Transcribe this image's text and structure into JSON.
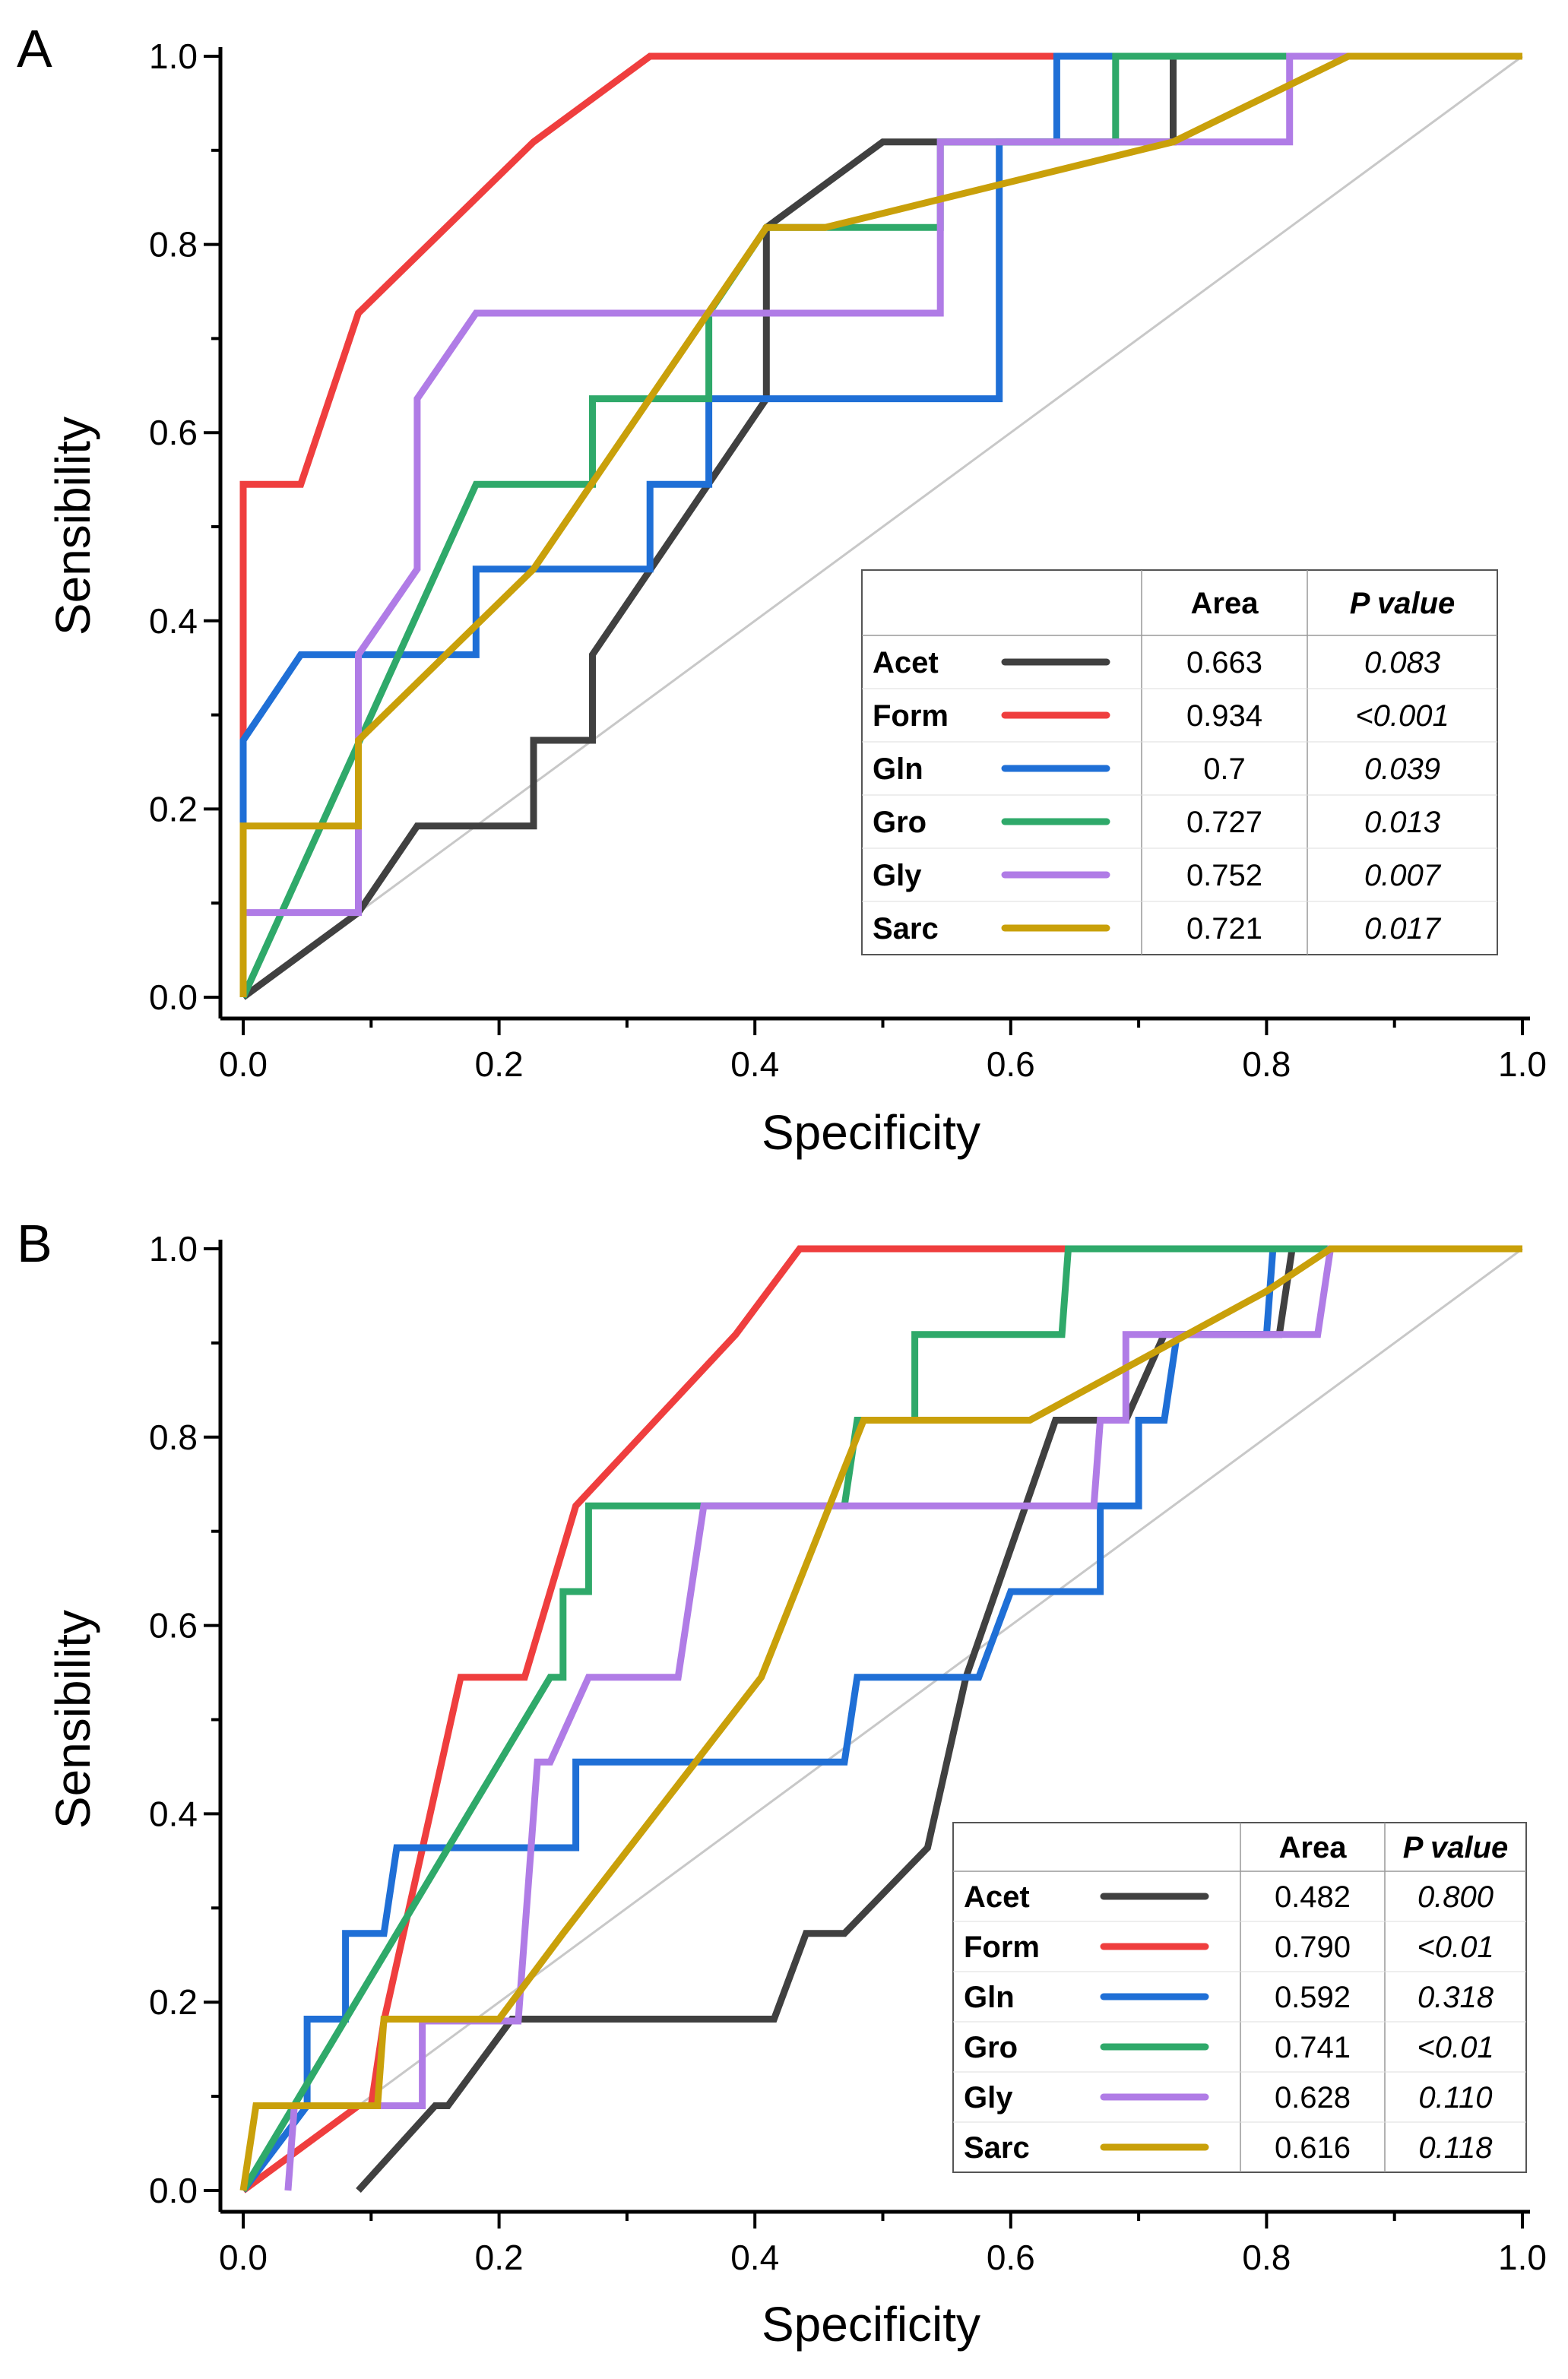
{
  "chart_data": [
    {
      "type": "line",
      "panel": "A",
      "xlabel": "Specificity",
      "ylabel": "Sensibility",
      "xlim": [
        0,
        1
      ],
      "ylim": [
        0,
        1
      ],
      "x_ticks": [
        "0.0",
        "0.2",
        "0.4",
        "0.6",
        "0.8",
        "1.0"
      ],
      "y_ticks": [
        "0.0",
        "0.2",
        "0.4",
        "0.6",
        "0.8",
        "1.0"
      ],
      "legend": {
        "placement": "lower-right",
        "header": [
          "Area",
          "P value"
        ]
      },
      "reference_line": {
        "color": "#c8c8c8",
        "points": [
          [
            0,
            0
          ],
          [
            1,
            1
          ]
        ]
      },
      "series": [
        {
          "name": "Acet",
          "area": "0.663",
          "p": "0.083",
          "color": "#404040",
          "points": [
            [
              0,
              0
            ],
            [
              0.09,
              0.09
            ],
            [
              0.136,
              0.182
            ],
            [
              0.227,
              0.182
            ],
            [
              0.227,
              0.273
            ],
            [
              0.273,
              0.273
            ],
            [
              0.273,
              0.364
            ],
            [
              0.409,
              0.636
            ],
            [
              0.409,
              0.818
            ],
            [
              0.5,
              0.909
            ],
            [
              0.727,
              0.909
            ],
            [
              0.727,
              1
            ],
            [
              1,
              1
            ]
          ]
        },
        {
          "name": "Form",
          "area": "0.934",
          "p": "<0.001",
          "color": "#ef3e3e",
          "points": [
            [
              0,
              0
            ],
            [
              0,
              0.545
            ],
            [
              0.045,
              0.545
            ],
            [
              0.09,
              0.727
            ],
            [
              0.227,
              0.909
            ],
            [
              0.318,
              1
            ],
            [
              1,
              1
            ]
          ]
        },
        {
          "name": "Gln",
          "area": "0.7",
          "p": "0.039",
          "color": "#1f6fd6",
          "points": [
            [
              0,
              0
            ],
            [
              0,
              0.273
            ],
            [
              0.045,
              0.364
            ],
            [
              0.182,
              0.364
            ],
            [
              0.182,
              0.455
            ],
            [
              0.318,
              0.455
            ],
            [
              0.318,
              0.545
            ],
            [
              0.364,
              0.545
            ],
            [
              0.364,
              0.636
            ],
            [
              0.591,
              0.636
            ],
            [
              0.591,
              0.909
            ],
            [
              0.636,
              0.909
            ],
            [
              0.636,
              1
            ],
            [
              1,
              1
            ]
          ]
        },
        {
          "name": "Gro",
          "area": "0.727",
          "p": "0.013",
          "color": "#2fa96a",
          "points": [
            [
              0,
              0
            ],
            [
              0.182,
              0.545
            ],
            [
              0.273,
              0.545
            ],
            [
              0.273,
              0.636
            ],
            [
              0.364,
              0.636
            ],
            [
              0.364,
              0.727
            ],
            [
              0.409,
              0.818
            ],
            [
              0.545,
              0.818
            ],
            [
              0.545,
              0.909
            ],
            [
              0.682,
              0.909
            ],
            [
              0.682,
              1
            ],
            [
              1,
              1
            ]
          ]
        },
        {
          "name": "Gly",
          "area": "0.752",
          "p": "0.007",
          "color": "#b07ce6",
          "points": [
            [
              0,
              0
            ],
            [
              0,
              0.09
            ],
            [
              0.09,
              0.09
            ],
            [
              0.09,
              0.364
            ],
            [
              0.136,
              0.455
            ],
            [
              0.136,
              0.636
            ],
            [
              0.182,
              0.727
            ],
            [
              0.545,
              0.727
            ],
            [
              0.545,
              0.909
            ],
            [
              0.818,
              0.909
            ],
            [
              0.818,
              1
            ],
            [
              1,
              1
            ]
          ]
        },
        {
          "name": "Sarc",
          "area": "0.721",
          "p": "0.017",
          "color": "#c9a00a",
          "points": [
            [
              0,
              0
            ],
            [
              0,
              0.182
            ],
            [
              0.09,
              0.182
            ],
            [
              0.09,
              0.273
            ],
            [
              0.227,
              0.455
            ],
            [
              0.409,
              0.818
            ],
            [
              0.455,
              0.818
            ],
            [
              0.727,
              0.909
            ],
            [
              0.864,
              1
            ],
            [
              1,
              1
            ]
          ]
        }
      ]
    },
    {
      "type": "line",
      "panel": "B",
      "xlabel": "Specificity",
      "ylabel": "Sensibility",
      "xlim": [
        0,
        1
      ],
      "ylim": [
        0,
        1
      ],
      "x_ticks": [
        "0.0",
        "0.2",
        "0.4",
        "0.6",
        "0.8",
        "1.0"
      ],
      "y_ticks": [
        "0.0",
        "0.2",
        "0.4",
        "0.6",
        "0.8",
        "1.0"
      ],
      "legend": {
        "placement": "lower-right",
        "header": [
          "Area",
          "P value"
        ]
      },
      "reference_line": {
        "color": "#c8c8c8",
        "points": [
          [
            0,
            0
          ],
          [
            1,
            1
          ]
        ]
      },
      "series": [
        {
          "name": "Acet",
          "area": "0.482",
          "p": "0.800",
          "color": "#404040",
          "points": [
            [
              0.09,
              0
            ],
            [
              0.15,
              0.09
            ],
            [
              0.16,
              0.09
            ],
            [
              0.21,
              0.182
            ],
            [
              0.415,
              0.182
            ],
            [
              0.44,
              0.273
            ],
            [
              0.47,
              0.273
            ],
            [
              0.535,
              0.364
            ],
            [
              0.565,
              0.545
            ],
            [
              0.635,
              0.818
            ],
            [
              0.69,
              0.818
            ],
            [
              0.72,
              0.909
            ],
            [
              0.81,
              0.909
            ],
            [
              0.82,
              1
            ],
            [
              1,
              1
            ]
          ]
        },
        {
          "name": "Form",
          "area": "0.790",
          "p": "<0.01",
          "color": "#ef3e3e",
          "points": [
            [
              0,
              0
            ],
            [
              0.09,
              0.09
            ],
            [
              0.1,
              0.09
            ],
            [
              0.11,
              0.18
            ],
            [
              0.17,
              0.545
            ],
            [
              0.22,
              0.545
            ],
            [
              0.26,
              0.727
            ],
            [
              0.385,
              0.909
            ],
            [
              0.435,
              1
            ],
            [
              1,
              1
            ]
          ]
        },
        {
          "name": "Gln",
          "area": "0.592",
          "p": "0.318",
          "color": "#1f6fd6",
          "points": [
            [
              0,
              0
            ],
            [
              0.05,
              0.09
            ],
            [
              0.05,
              0.182
            ],
            [
              0.08,
              0.182
            ],
            [
              0.08,
              0.273
            ],
            [
              0.11,
              0.273
            ],
            [
              0.12,
              0.364
            ],
            [
              0.26,
              0.364
            ],
            [
              0.26,
              0.455
            ],
            [
              0.47,
              0.455
            ],
            [
              0.48,
              0.545
            ],
            [
              0.575,
              0.545
            ],
            [
              0.6,
              0.636
            ],
            [
              0.67,
              0.636
            ],
            [
              0.67,
              0.727
            ],
            [
              0.7,
              0.727
            ],
            [
              0.7,
              0.818
            ],
            [
              0.72,
              0.818
            ],
            [
              0.73,
              0.909
            ],
            [
              0.8,
              0.909
            ],
            [
              0.805,
              1
            ],
            [
              1,
              1
            ]
          ]
        },
        {
          "name": "Gro",
          "area": "0.741",
          "p": "<0.01",
          "color": "#2fa96a",
          "points": [
            [
              0,
              0
            ],
            [
              0.24,
              0.545
            ],
            [
              0.25,
              0.545
            ],
            [
              0.25,
              0.636
            ],
            [
              0.27,
              0.636
            ],
            [
              0.27,
              0.727
            ],
            [
              0.365,
              0.727
            ],
            [
              0.47,
              0.727
            ],
            [
              0.48,
              0.818
            ],
            [
              0.525,
              0.818
            ],
            [
              0.525,
              0.909
            ],
            [
              0.64,
              0.909
            ],
            [
              0.645,
              1
            ],
            [
              1,
              1
            ]
          ]
        },
        {
          "name": "Gly",
          "area": "0.628",
          "p": "0.110",
          "color": "#b07ce6",
          "points": [
            [
              0.035,
              0
            ],
            [
              0.04,
              0.09
            ],
            [
              0.14,
              0.09
            ],
            [
              0.14,
              0.18
            ],
            [
              0.215,
              0.18
            ],
            [
              0.23,
              0.455
            ],
            [
              0.24,
              0.455
            ],
            [
              0.27,
              0.545
            ],
            [
              0.34,
              0.545
            ],
            [
              0.36,
              0.727
            ],
            [
              0.665,
              0.727
            ],
            [
              0.67,
              0.818
            ],
            [
              0.69,
              0.818
            ],
            [
              0.69,
              0.909
            ],
            [
              0.84,
              0.909
            ],
            [
              0.85,
              1
            ],
            [
              1,
              1
            ]
          ]
        },
        {
          "name": "Sarc",
          "area": "0.616",
          "p": "0.118",
          "color": "#c9a00a",
          "points": [
            [
              0,
              0
            ],
            [
              0.01,
              0.09
            ],
            [
              0.105,
              0.09
            ],
            [
              0.11,
              0.182
            ],
            [
              0.2,
              0.182
            ],
            [
              0.25,
              0.273
            ],
            [
              0.405,
              0.545
            ],
            [
              0.485,
              0.818
            ],
            [
              0.615,
              0.818
            ],
            [
              0.8,
              0.955
            ],
            [
              0.85,
              1
            ],
            [
              1,
              1
            ]
          ]
        }
      ]
    }
  ]
}
